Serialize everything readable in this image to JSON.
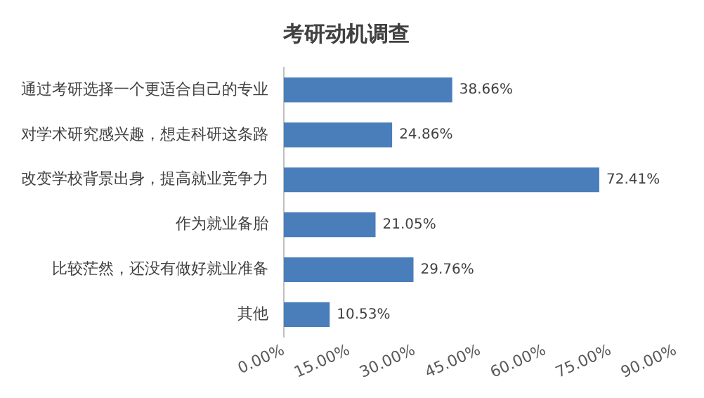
{
  "chart_data": {
    "type": "bar",
    "orientation": "horizontal",
    "title": "考研动机调查",
    "categories": [
      "通过考研选择一个更适合自己的专业",
      "对学术研究感兴趣，想走科研这条路",
      "改变学校背景出身，提高就业竞争力",
      "作为就业备胎",
      "比较茫然，还没有做好就业准备",
      "其他"
    ],
    "values": [
      38.66,
      24.86,
      72.41,
      21.05,
      29.76,
      10.53
    ],
    "value_labels": [
      "38.66%",
      "24.86%",
      "72.41%",
      "21.05%",
      "29.76%",
      "10.53%"
    ],
    "color": "#4a7ebb",
    "xlim": [
      0,
      90
    ],
    "xticks": [
      {
        "value": 0,
        "label": "0.00%"
      },
      {
        "value": 15,
        "label": "15.00%"
      },
      {
        "value": 30,
        "label": "30.00%"
      },
      {
        "value": 45,
        "label": "45.00%"
      },
      {
        "value": 60,
        "label": "60.00%"
      },
      {
        "value": 75,
        "label": "75.00%"
      },
      {
        "value": 90,
        "label": "90.00%"
      }
    ],
    "grid": false,
    "legend": false
  }
}
